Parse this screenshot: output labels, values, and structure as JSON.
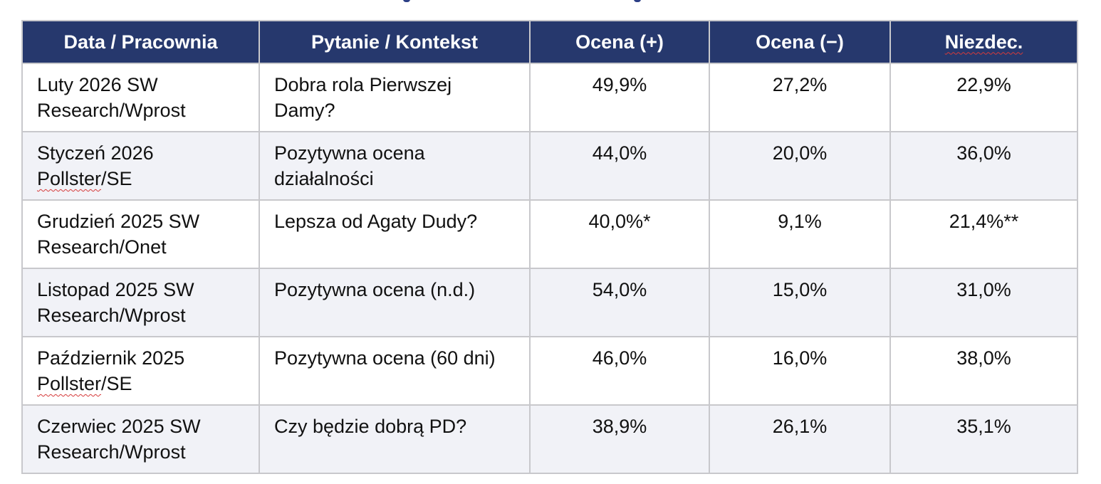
{
  "colors": {
    "header_bg": "#26386d",
    "header_text": "#ffffff",
    "row_alt_bg": "#f1f2f7",
    "border": "#c8c8cc",
    "spellcheck_underline": "#d63a3a"
  },
  "table": {
    "headers": [
      "Data / Pracownia",
      "Pytanie / Kontekst",
      "Ocena (+)",
      "Ocena (−)",
      "Niezdec."
    ],
    "rows": [
      {
        "date": "Luty 2026",
        "pollster": "SW Research/Wprost",
        "question": "Dobra rola Pierwszej Damy?",
        "positive": "49,9%",
        "negative": "27,2%",
        "undecided": "22,9%"
      },
      {
        "date": "Styczeń 2026",
        "pollster_a": "Pollster",
        "pollster_b": "/SE",
        "question": "Pozytywna ocena działalności",
        "positive": "44,0%",
        "negative": "20,0%",
        "undecided": "36,0%"
      },
      {
        "date": "Grudzień 2025",
        "pollster": "SW Research/Onet",
        "question": "Lepsza od Agaty Dudy?",
        "positive": "40,0%*",
        "negative": "9,1%",
        "undecided": "21,4%**"
      },
      {
        "date": "Listopad 2025",
        "pollster": "SW Research/Wprost",
        "question": "Pozytywna ocena (n.d.)",
        "positive": "54,0%",
        "negative": "15,0%",
        "undecided": "31,0%"
      },
      {
        "date": "Październik 2025",
        "pollster_a": "Pollster",
        "pollster_b": "/SE",
        "question": "Pozytywna ocena (60 dni)",
        "positive": "46,0%",
        "negative": "16,0%",
        "undecided": "38,0%"
      },
      {
        "date": "Czerwiec 2025",
        "pollster": "SW Research/Wprost",
        "question": "Czy będzie dobrą PD?",
        "positive": "38,9%",
        "negative": "26,1%",
        "undecided": "35,1%"
      }
    ]
  }
}
